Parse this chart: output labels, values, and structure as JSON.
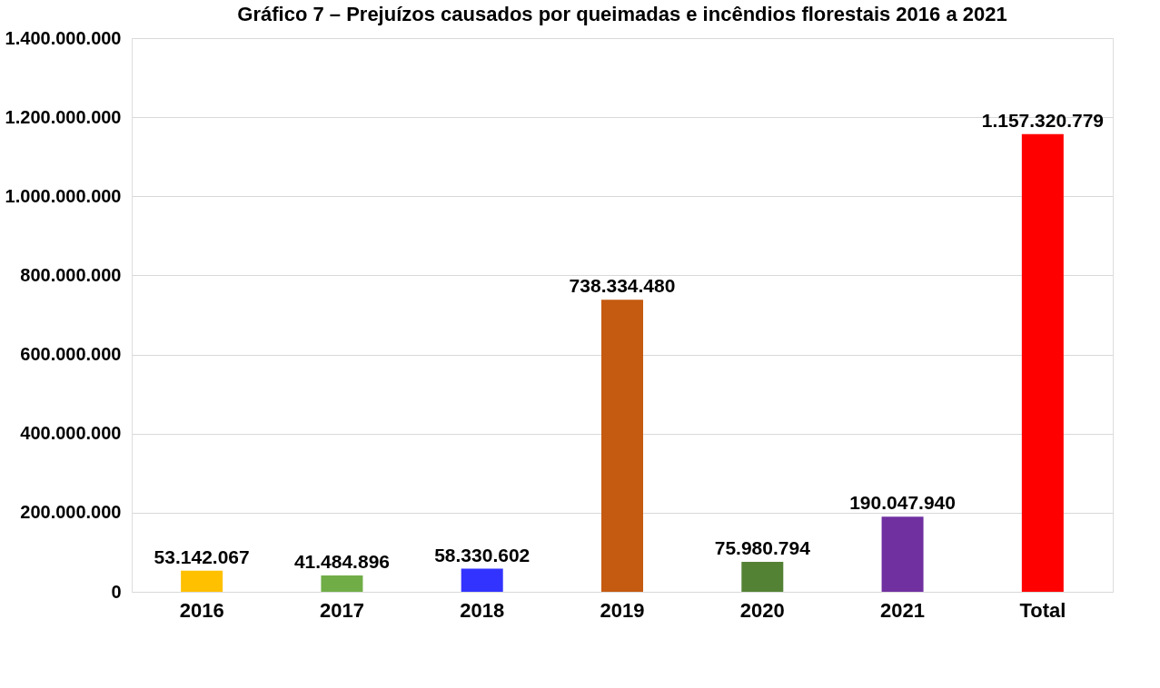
{
  "chart_data": {
    "type": "bar",
    "title": "Gráfico 7 – Prejuízos causados por queimadas e incêndios florestais 2016 a 2021",
    "categories": [
      "2016",
      "2017",
      "2018",
      "2019",
      "2020",
      "2021",
      "Total"
    ],
    "values": [
      53142067,
      41484896,
      58330602,
      738334480,
      75980794,
      190047940,
      1157320779
    ],
    "colors": [
      "#ffc000",
      "#70ad47",
      "#3333ff",
      "#c55a11",
      "#548235",
      "#7030a0",
      "#ff0000"
    ],
    "value_labels": [
      "53.142.067",
      "41.484.896",
      "58.330.602",
      "738.334.480",
      "75.980.794",
      "190.047.940",
      "1.157.320.779"
    ],
    "ylim": [
      0,
      1400000000
    ],
    "yticks": [
      0,
      {
        "value": 200000000,
        "label": "200.000.000"
      },
      {
        "value": 400000000,
        "label": "400.000.000"
      },
      {
        "value": 600000000,
        "label": "600.000.000"
      },
      {
        "value": 800000000,
        "label": "800.000.000"
      },
      {
        "value": 1000000000,
        "label": "1.000.000.000"
      },
      {
        "value": 1200000000,
        "label": "1.200.000.000"
      },
      {
        "value": 1400000000,
        "label": "1.400.000.000"
      }
    ],
    "grid": "y",
    "legend": false
  }
}
